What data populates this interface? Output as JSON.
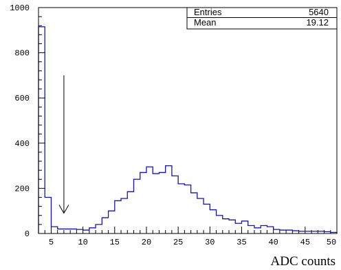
{
  "chart_data": {
    "type": "histogram",
    "xlabel": "ADC counts",
    "ylabel": "",
    "xlim": [
      3,
      50
    ],
    "ylim": [
      0,
      1000
    ],
    "x_ticks": [
      5,
      10,
      15,
      20,
      25,
      30,
      35,
      40,
      45,
      50
    ],
    "y_ticks": [
      0,
      200,
      400,
      600,
      800,
      1000
    ],
    "bin_width": 1,
    "bin_edges_start": 3,
    "bin_contents": [
      915,
      160,
      30,
      20,
      20,
      20,
      18,
      15,
      25,
      40,
      70,
      100,
      145,
      155,
      185,
      240,
      270,
      295,
      265,
      270,
      300,
      255,
      220,
      215,
      180,
      155,
      130,
      105,
      80,
      65,
      60,
      45,
      55,
      35,
      25,
      35,
      30,
      18,
      15,
      15,
      12,
      10,
      10,
      10,
      10,
      8,
      5
    ],
    "line_color": "#1010cc",
    "arrow": {
      "x": 7,
      "y_top": 700,
      "y_bottom": 90
    },
    "stats": {
      "entries_label": "Entries",
      "entries_value": "5640",
      "mean_label": "Mean",
      "mean_value": "19.12"
    }
  }
}
